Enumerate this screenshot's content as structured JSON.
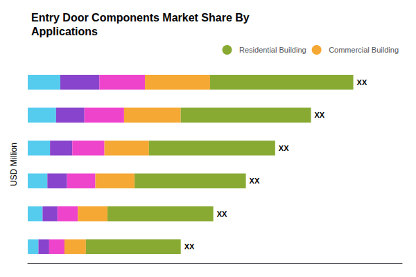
{
  "chart_data": {
    "type": "bar",
    "orientation": "horizontal",
    "stacked": true,
    "title": "Entry Door Components Market Share By\nApplications",
    "ylabel": "USD Million",
    "categories": [
      null,
      null,
      null,
      null,
      null,
      null
    ],
    "series": [
      {
        "color": "#55CCEE",
        "values": [
          0.1,
          0.087,
          0.0684,
          0.0603,
          0.0456,
          0.0329
        ]
      },
      {
        "color": "#8844CC",
        "values": [
          0.12,
          0.087,
          0.0684,
          0.0603,
          0.0456,
          0.0329
        ]
      },
      {
        "color": "#EE44CC",
        "values": [
          0.14,
          0.1218,
          0.0988,
          0.0871,
          0.0627,
          0.047
        ]
      },
      {
        "name": "Commercial Building",
        "color": "#F5A833",
        "values": [
          0.2,
          0.174,
          0.1368,
          0.1206,
          0.0912,
          0.0658
        ]
      },
      {
        "name": "Residential Building",
        "color": "#88AA33",
        "values": [
          0.44,
          0.4002,
          0.3876,
          0.3417,
          0.3249,
          0.2914
        ]
      }
    ],
    "annotations": [
      "XX",
      "XX",
      "XX",
      "XX",
      "XX",
      "XX"
    ],
    "xlim": [
      0,
      1.15
    ],
    "grid": false,
    "tick_labels": false,
    "legend": "upper right"
  }
}
